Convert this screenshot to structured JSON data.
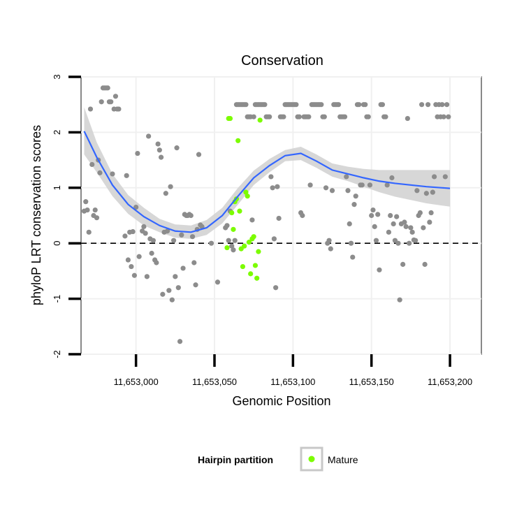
{
  "chart_data": {
    "type": "scatter",
    "title": "Conservation",
    "xlabel": "Genomic Position",
    "ylabel": "phyloP LRT conservation scores",
    "xlim": [
      11652965,
      11653220
    ],
    "ylim": [
      -2,
      3
    ],
    "xticks": [
      11653000,
      11653050,
      11653100,
      11653150,
      11653200
    ],
    "xtick_labels": [
      "11,653,000",
      "11,653,050",
      "11,653,100",
      "11,653,150",
      "11,653,200"
    ],
    "yticks": [
      -2,
      -1,
      0,
      1,
      2,
      3
    ],
    "ytick_labels": [
      "-2",
      "-1",
      "0",
      "1",
      "2",
      "3"
    ],
    "reference_line": {
      "y": 0,
      "style": "dashed"
    },
    "legend": {
      "title": "Hairpin partition",
      "entries": [
        "Mature"
      ],
      "position": "bottom"
    },
    "colors": {
      "other": "#8c8c8c",
      "mature": "#7cfc00",
      "smooth": "#3366ff",
      "band": "#d3d3d3",
      "frame": "#888888"
    },
    "series": [
      {
        "name": "Hairpin",
        "color": "#8c8c8c",
        "points": [
          [
            11652967,
            0.58
          ],
          [
            11652968,
            0.75
          ],
          [
            11652969,
            0.6
          ],
          [
            11652970,
            0.2
          ],
          [
            11652971,
            2.42
          ],
          [
            11652972,
            1.42
          ],
          [
            11652973,
            0.5
          ],
          [
            11652974,
            0.6
          ],
          [
            11652975,
            0.46
          ],
          [
            11652976,
            1.5
          ],
          [
            11652977,
            1.27
          ],
          [
            11652978,
            2.55
          ],
          [
            11652979,
            2.8
          ],
          [
            11652980,
            2.8
          ],
          [
            11652981,
            2.8
          ],
          [
            11652982,
            2.8
          ],
          [
            11652983,
            2.55
          ],
          [
            11652984,
            2.55
          ],
          [
            11652985,
            1.25
          ],
          [
            11652986,
            2.42
          ],
          [
            11652987,
            2.65
          ],
          [
            11652988,
            2.42
          ],
          [
            11652989,
            2.42
          ],
          [
            11652993,
            0.13
          ],
          [
            11652994,
            1.22
          ],
          [
            11652995,
            -0.3
          ],
          [
            11652996,
            0.2
          ],
          [
            11652997,
            -0.42
          ],
          [
            11652998,
            0.21
          ],
          [
            11652999,
            -0.58
          ],
          [
            11653000,
            0.65
          ],
          [
            11653001,
            1.62
          ],
          [
            11653002,
            -0.24
          ],
          [
            11653004,
            0.22
          ],
          [
            11653005,
            0.3
          ],
          [
            11653006,
            0.18
          ],
          [
            11653007,
            -0.6
          ],
          [
            11653008,
            1.93
          ],
          [
            11653009,
            0.08
          ],
          [
            11653010,
            -0.18
          ],
          [
            11653011,
            0.05
          ],
          [
            11653012,
            -0.3
          ],
          [
            11653013,
            -0.35
          ],
          [
            11653014,
            1.79
          ],
          [
            11653015,
            1.68
          ],
          [
            11653016,
            1.55
          ],
          [
            11653017,
            -0.92
          ],
          [
            11653018,
            0.2
          ],
          [
            11653019,
            0.9
          ],
          [
            11653020,
            0.22
          ],
          [
            11653021,
            -0.85
          ],
          [
            11653022,
            1.02
          ],
          [
            11653023,
            -1.02
          ],
          [
            11653024,
            0.05
          ],
          [
            11653025,
            -0.6
          ],
          [
            11653026,
            1.72
          ],
          [
            11653027,
            -0.8
          ],
          [
            11653028,
            -1.77
          ],
          [
            11653029,
            0.15
          ],
          [
            11653030,
            -0.45
          ],
          [
            11653031,
            0.52
          ],
          [
            11653032,
            0.5
          ],
          [
            11653033,
            0.5
          ],
          [
            11653034,
            0.52
          ],
          [
            11653035,
            0.5
          ],
          [
            11653036,
            0.12
          ],
          [
            11653037,
            -0.35
          ],
          [
            11653038,
            -0.75
          ],
          [
            11653039,
            0.25
          ],
          [
            11653040,
            1.6
          ],
          [
            11653041,
            0.33
          ],
          [
            11653042,
            0.3
          ],
          [
            11653048,
            0.0
          ],
          [
            11653052,
            -0.7
          ],
          [
            11653057,
            0.28
          ],
          [
            11653058,
            0.32
          ],
          [
            11653059,
            0.05
          ],
          [
            11653060,
            0.58
          ],
          [
            11653061,
            -0.05
          ],
          [
            11653062,
            -0.12
          ],
          [
            11653063,
            0.05
          ],
          [
            11653064,
            2.5
          ],
          [
            11653065,
            2.5
          ],
          [
            11653066,
            2.5
          ],
          [
            11653067,
            2.5
          ],
          [
            11653068,
            2.5
          ],
          [
            11653069,
            2.5
          ],
          [
            11653070,
            2.5
          ],
          [
            11653071,
            2.28
          ],
          [
            11653072,
            2.28
          ],
          [
            11653073,
            2.28
          ],
          [
            11653074,
            0.42
          ],
          [
            11653075,
            2.28
          ],
          [
            11653076,
            2.5
          ],
          [
            11653077,
            2.5
          ],
          [
            11653078,
            2.5
          ],
          [
            11653079,
            2.5
          ],
          [
            11653080,
            2.5
          ],
          [
            11653081,
            2.5
          ],
          [
            11653082,
            2.5
          ],
          [
            11653083,
            2.28
          ],
          [
            11653084,
            2.28
          ],
          [
            11653085,
            2.28
          ],
          [
            11653086,
            1.2
          ],
          [
            11653087,
            1.0
          ],
          [
            11653088,
            0.08
          ],
          [
            11653089,
            -0.8
          ],
          [
            11653090,
            1.02
          ],
          [
            11653091,
            0.45
          ],
          [
            11653092,
            2.28
          ],
          [
            11653093,
            2.28
          ],
          [
            11653094,
            2.28
          ],
          [
            11653095,
            2.5
          ],
          [
            11653096,
            2.5
          ],
          [
            11653097,
            2.5
          ],
          [
            11653098,
            2.5
          ],
          [
            11653099,
            2.5
          ],
          [
            11653100,
            2.5
          ],
          [
            11653101,
            2.5
          ],
          [
            11653102,
            2.5
          ],
          [
            11653103,
            2.28
          ],
          [
            11653104,
            2.28
          ],
          [
            11653105,
            0.55
          ],
          [
            11653106,
            0.5
          ],
          [
            11653107,
            2.28
          ],
          [
            11653108,
            2.28
          ],
          [
            11653109,
            2.28
          ],
          [
            11653110,
            2.28
          ],
          [
            11653111,
            1.05
          ],
          [
            11653112,
            2.5
          ],
          [
            11653113,
            2.5
          ],
          [
            11653114,
            2.5
          ],
          [
            11653115,
            2.5
          ],
          [
            11653116,
            2.5
          ],
          [
            11653117,
            2.5
          ],
          [
            11653118,
            2.5
          ],
          [
            11653119,
            2.28
          ],
          [
            11653120,
            2.28
          ],
          [
            11653121,
            1.0
          ],
          [
            11653122,
            0.0
          ],
          [
            11653123,
            0.05
          ],
          [
            11653124,
            -0.1
          ],
          [
            11653125,
            0.95
          ],
          [
            11653126,
            2.5
          ],
          [
            11653127,
            2.5
          ],
          [
            11653128,
            2.5
          ],
          [
            11653129,
            2.5
          ],
          [
            11653130,
            2.28
          ],
          [
            11653131,
            2.28
          ],
          [
            11653132,
            2.28
          ],
          [
            11653133,
            2.28
          ],
          [
            11653134,
            1.2
          ],
          [
            11653135,
            0.95
          ],
          [
            11653136,
            0.35
          ],
          [
            11653137,
            0.0
          ],
          [
            11653138,
            -0.25
          ],
          [
            11653139,
            0.7
          ],
          [
            11653140,
            0.85
          ],
          [
            11653141,
            2.5
          ],
          [
            11653142,
            2.5
          ],
          [
            11653143,
            1.05
          ],
          [
            11653144,
            1.05
          ],
          [
            11653145,
            2.5
          ],
          [
            11653146,
            2.5
          ],
          [
            11653147,
            2.28
          ],
          [
            11653148,
            2.28
          ],
          [
            11653149,
            1.05
          ],
          [
            11653150,
            0.5
          ],
          [
            11653151,
            0.6
          ],
          [
            11653152,
            0.3
          ],
          [
            11653153,
            0.05
          ],
          [
            11653154,
            0.52
          ],
          [
            11653155,
            -0.48
          ],
          [
            11653156,
            2.5
          ],
          [
            11653157,
            2.5
          ],
          [
            11653158,
            2.28
          ],
          [
            11653159,
            2.28
          ],
          [
            11653160,
            1.05
          ],
          [
            11653161,
            0.2
          ],
          [
            11653162,
            0.5
          ],
          [
            11653163,
            1.18
          ],
          [
            11653164,
            0.35
          ],
          [
            11653165,
            0.05
          ],
          [
            11653166,
            0.48
          ],
          [
            11653167,
            0.0
          ],
          [
            11653168,
            -1.02
          ],
          [
            11653169,
            0.35
          ],
          [
            11653170,
            -0.38
          ],
          [
            11653171,
            0.38
          ],
          [
            11653172,
            0.3
          ],
          [
            11653173,
            2.25
          ],
          [
            11653174,
            0.0
          ],
          [
            11653175,
            0.28
          ],
          [
            11653176,
            0.2
          ],
          [
            11653177,
            0.06
          ],
          [
            11653178,
            0.05
          ],
          [
            11653179,
            0.95
          ],
          [
            11653180,
            0.5
          ],
          [
            11653181,
            0.55
          ],
          [
            11653182,
            2.5
          ],
          [
            11653183,
            0.28
          ],
          [
            11653184,
            -0.38
          ],
          [
            11653185,
            0.9
          ],
          [
            11653186,
            2.5
          ],
          [
            11653187,
            0.38
          ],
          [
            11653188,
            0.55
          ],
          [
            11653189,
            0.92
          ],
          [
            11653190,
            1.2
          ],
          [
            11653191,
            2.5
          ],
          [
            11653192,
            2.28
          ],
          [
            11653193,
            2.5
          ],
          [
            11653194,
            2.28
          ],
          [
            11653195,
            2.5
          ],
          [
            11653196,
            2.28
          ],
          [
            11653197,
            1.2
          ],
          [
            11653198,
            2.5
          ],
          [
            11653199,
            2.28
          ]
        ]
      },
      {
        "name": "Mature",
        "color": "#7cfc00",
        "points": [
          [
            11653058,
            -0.08
          ],
          [
            11653059,
            2.25
          ],
          [
            11653060,
            2.25
          ],
          [
            11653061,
            0.55
          ],
          [
            11653062,
            0.25
          ],
          [
            11653063,
            0.75
          ],
          [
            11653064,
            0.8
          ],
          [
            11653065,
            1.85
          ],
          [
            11653066,
            0.58
          ],
          [
            11653067,
            -0.1
          ],
          [
            11653068,
            -0.42
          ],
          [
            11653069,
            -0.05
          ],
          [
            11653070,
            0.92
          ],
          [
            11653071,
            0.85
          ],
          [
            11653072,
            0.02
          ],
          [
            11653073,
            -0.55
          ],
          [
            11653074,
            0.08
          ],
          [
            11653075,
            0.12
          ],
          [
            11653076,
            -0.4
          ],
          [
            11653077,
            -0.63
          ],
          [
            11653078,
            -0.15
          ],
          [
            11653079,
            2.22
          ]
        ]
      }
    ],
    "smooth": {
      "x": [
        11652967,
        11652975,
        11652985,
        11652995,
        11653005,
        11653015,
        11653025,
        11653035,
        11653045,
        11653055,
        11653065,
        11653075,
        11653085,
        11653095,
        11653105,
        11653115,
        11653125,
        11653135,
        11653145,
        11653155,
        11653165,
        11653175,
        11653185,
        11653195,
        11653200
      ],
      "y": [
        2.02,
        1.55,
        1.05,
        0.7,
        0.48,
        0.32,
        0.22,
        0.2,
        0.28,
        0.5,
        0.85,
        1.18,
        1.4,
        1.58,
        1.62,
        1.48,
        1.32,
        1.25,
        1.18,
        1.12,
        1.08,
        1.05,
        1.02,
        1.0,
        0.99
      ],
      "ymin": [
        1.6,
        1.28,
        0.85,
        0.53,
        0.32,
        0.2,
        0.1,
        0.08,
        0.15,
        0.36,
        0.7,
        1.05,
        1.28,
        1.48,
        1.5,
        1.36,
        1.2,
        1.12,
        1.02,
        0.92,
        0.84,
        0.78,
        0.72,
        0.68,
        0.66
      ],
      "ymax": [
        2.45,
        1.82,
        1.25,
        0.87,
        0.64,
        0.44,
        0.34,
        0.32,
        0.42,
        0.64,
        1.0,
        1.31,
        1.52,
        1.68,
        1.74,
        1.6,
        1.44,
        1.38,
        1.34,
        1.32,
        1.32,
        1.32,
        1.32,
        1.32,
        1.32
      ]
    }
  }
}
